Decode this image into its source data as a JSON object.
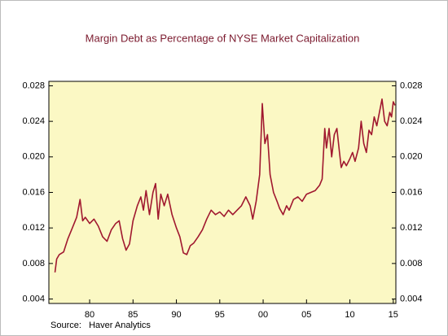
{
  "chart_data": {
    "type": "line",
    "title": "Margin Debt as Percentage of NYSE Market Capitalization",
    "source": "Source:   Haver Analytics",
    "x": [
      1976.0,
      1976.2,
      1976.5,
      1977,
      1977.5,
      1978,
      1978.5,
      1978.9,
      1979.2,
      1979.5,
      1980,
      1980.5,
      1981,
      1981.5,
      1982,
      1982.5,
      1983,
      1983.4,
      1983.8,
      1984.2,
      1984.6,
      1985,
      1985.5,
      1985.9,
      1986.2,
      1986.5,
      1986.9,
      1987.3,
      1987.6,
      1987.9,
      1988.2,
      1988.6,
      1989,
      1989.5,
      1990,
      1990.4,
      1990.8,
      1991.2,
      1991.6,
      1992,
      1992.5,
      1993,
      1993.5,
      1994,
      1994.5,
      1995,
      1995.5,
      1996,
      1996.5,
      1997,
      1997.5,
      1998,
      1998.5,
      1998.8,
      1999.2,
      1999.6,
      1999.9,
      2000.2,
      2000.5,
      2000.8,
      2001.2,
      2001.6,
      2001.9,
      2002.3,
      2002.7,
      2003,
      2003.5,
      2004,
      2004.5,
      2005,
      2005.5,
      2006,
      2006.5,
      2006.8,
      2007.1,
      2007.3,
      2007.6,
      2007.9,
      2008.2,
      2008.5,
      2008.8,
      2009,
      2009.3,
      2009.6,
      2010,
      2010.3,
      2010.6,
      2011,
      2011.3,
      2011.6,
      2011.9,
      2012.2,
      2012.5,
      2012.8,
      2013.1,
      2013.4,
      2013.7,
      2014,
      2014.3,
      2014.6,
      2014.8,
      2015,
      2015.2
    ],
    "series": [
      {
        "name": "Margin Debt",
        "color": "#a0182f",
        "values": [
          0.007,
          0.0085,
          0.009,
          0.0093,
          0.0108,
          0.012,
          0.0132,
          0.0152,
          0.0128,
          0.0132,
          0.0125,
          0.013,
          0.0122,
          0.011,
          0.0105,
          0.0118,
          0.0125,
          0.0128,
          0.0108,
          0.0095,
          0.0102,
          0.0128,
          0.0145,
          0.0155,
          0.014,
          0.0162,
          0.0135,
          0.016,
          0.017,
          0.013,
          0.0158,
          0.0145,
          0.0158,
          0.0135,
          0.012,
          0.011,
          0.0092,
          0.009,
          0.01,
          0.0103,
          0.011,
          0.0118,
          0.013,
          0.014,
          0.0135,
          0.0138,
          0.0133,
          0.014,
          0.0135,
          0.014,
          0.0145,
          0.0155,
          0.0145,
          0.013,
          0.015,
          0.018,
          0.026,
          0.0215,
          0.0225,
          0.018,
          0.016,
          0.015,
          0.0142,
          0.0135,
          0.0145,
          0.014,
          0.0152,
          0.0155,
          0.015,
          0.0158,
          0.016,
          0.0162,
          0.0168,
          0.0175,
          0.0232,
          0.021,
          0.0232,
          0.02,
          0.0225,
          0.0232,
          0.0205,
          0.0188,
          0.0195,
          0.019,
          0.0198,
          0.0205,
          0.0195,
          0.021,
          0.024,
          0.0215,
          0.0205,
          0.023,
          0.0225,
          0.0245,
          0.0235,
          0.025,
          0.0265,
          0.024,
          0.0235,
          0.025,
          0.0245,
          0.0262,
          0.0258
        ]
      }
    ],
    "xlim": [
      1975.3,
      2015.3
    ],
    "xticks": [
      {
        "value": 1980,
        "label": "80"
      },
      {
        "value": 1985,
        "label": "85"
      },
      {
        "value": 1990,
        "label": "90"
      },
      {
        "value": 1995,
        "label": "95"
      },
      {
        "value": 2000,
        "label": "00"
      },
      {
        "value": 2005,
        "label": "05"
      },
      {
        "value": 2010,
        "label": "10"
      },
      {
        "value": 2015,
        "label": "15"
      }
    ],
    "ylim": [
      0.0035,
      0.0285
    ],
    "yticks": [
      0.004,
      0.008,
      0.012,
      0.016,
      {
        "value": 0.02,
        "label": "0.020"
      },
      0.024,
      0.028
    ],
    "plot_background": "#fbf8c4"
  }
}
